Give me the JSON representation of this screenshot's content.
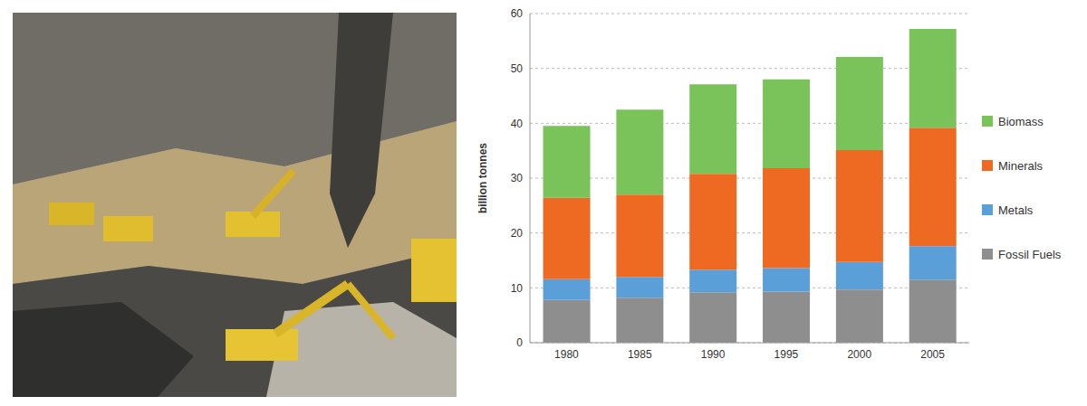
{
  "chart_data": {
    "type": "bar",
    "stacked": true,
    "y_label": "billion tonnes",
    "categories": [
      "1980",
      "1985",
      "1990",
      "1995",
      "2000",
      "2005"
    ],
    "series": [
      {
        "name": "Fossil Fuels",
        "color": "#8e8e8e",
        "values": [
          7.8,
          8.2,
          9.2,
          9.3,
          9.7,
          11.5
        ]
      },
      {
        "name": "Metals",
        "color": "#5b9fd8",
        "values": [
          3.8,
          3.8,
          4.1,
          4.3,
          5.0,
          6.1
        ]
      },
      {
        "name": "Minerals",
        "color": "#ee6a22",
        "values": [
          14.8,
          15.0,
          17.5,
          18.2,
          20.4,
          21.6
        ]
      },
      {
        "name": "Biomass",
        "color": "#79c35a",
        "values": [
          13.1,
          15.5,
          16.3,
          16.2,
          17.0,
          18.0
        ]
      }
    ],
    "ylim": [
      0,
      60
    ],
    "yticks": [
      0,
      10,
      20,
      30,
      40,
      50,
      60
    ],
    "grid": true,
    "legend": "right"
  }
}
